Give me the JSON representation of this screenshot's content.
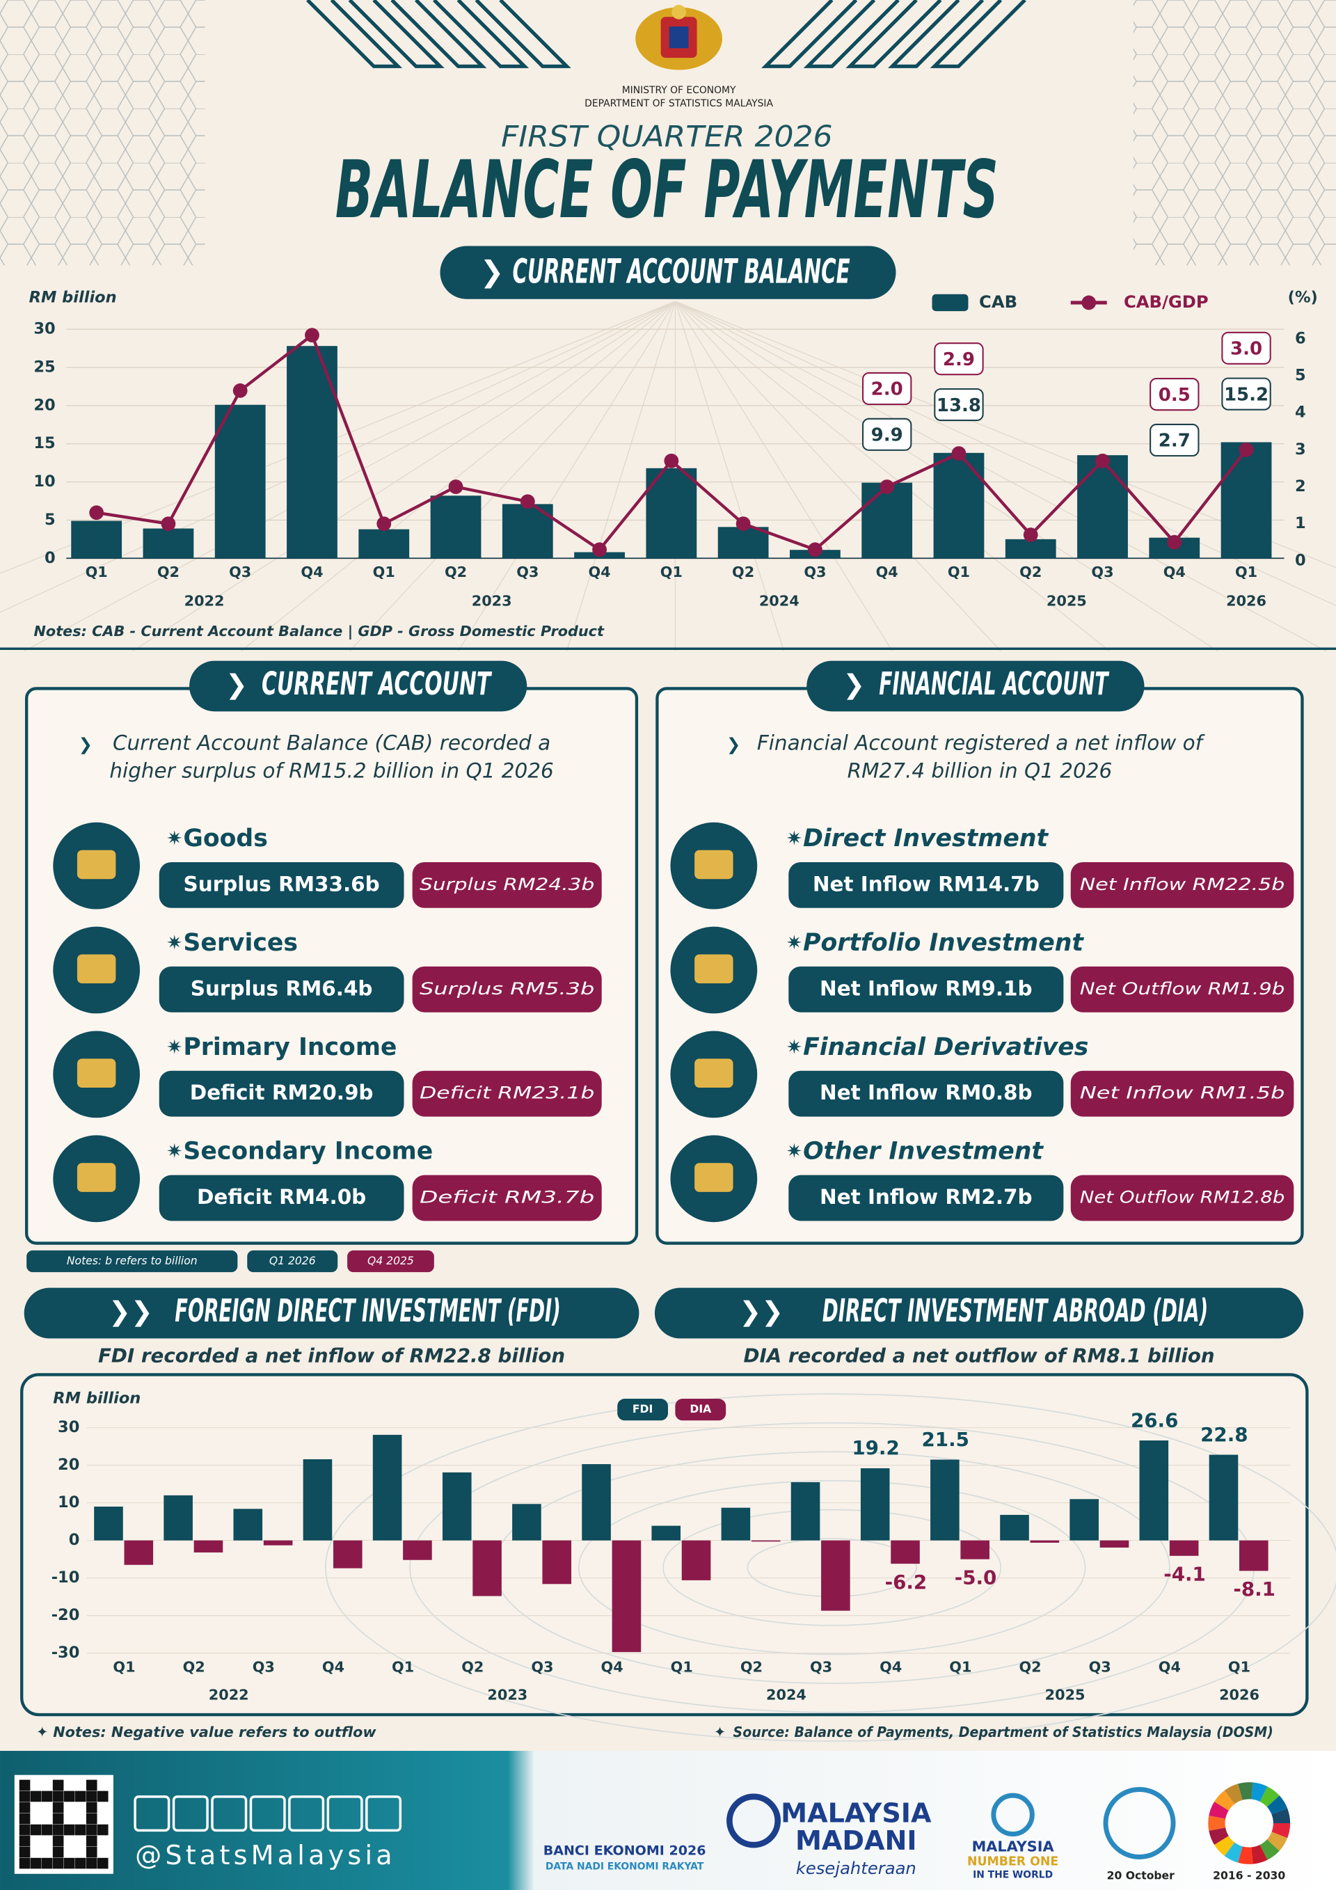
{
  "header": {
    "agency": [
      "MINISTRY OF ECONOMY",
      "DEPARTMENT OF STATISTICS MALAYSIA"
    ],
    "subtitle": "FIRST QUARTER 2026",
    "title": "BALANCE OF PAYMENTS",
    "section": "CURRENT ACCOUNT BALANCE"
  },
  "chart_data": [
    {
      "type": "combo",
      "y_label": "RM billion",
      "y2_label": "(%)",
      "notes": "Notes: CAB - Current Account Balance | GDP - Gross Domestic Product",
      "categories": [
        "Q1",
        "Q2",
        "Q3",
        "Q4",
        "Q1",
        "Q2",
        "Q3",
        "Q4",
        "Q1",
        "Q2",
        "Q3",
        "Q4",
        "Q1",
        "Q2",
        "Q3",
        "Q4",
        "Q1"
      ],
      "groups": [
        "2022",
        "2023",
        "2024",
        "2025",
        "2026"
      ],
      "series": [
        {
          "name": "CAB",
          "type": "bar",
          "color": "#0f4c5c",
          "values": [
            4.9,
            3.9,
            20.1,
            27.8,
            3.8,
            8.2,
            7.1,
            0.8,
            11.8,
            4.1,
            1.1,
            9.9,
            13.8,
            2.5,
            13.5,
            2.7,
            15.2
          ],
          "value_labels": [
            null,
            null,
            null,
            null,
            null,
            null,
            null,
            null,
            null,
            null,
            null,
            "9.9",
            "13.8",
            null,
            null,
            "2.7",
            "15.2"
          ]
        },
        {
          "name": "CAB/GDP",
          "type": "line",
          "axis": "y2",
          "color": "#8b1a4a",
          "values": [
            1.3,
            1.0,
            4.6,
            6.1,
            1.0,
            2.0,
            1.6,
            0.3,
            2.7,
            1.0,
            0.3,
            2.0,
            2.9,
            0.7,
            2.7,
            0.5,
            3.0
          ],
          "value_labels": [
            null,
            null,
            null,
            null,
            null,
            null,
            null,
            null,
            null,
            null,
            null,
            "2.0",
            "2.9",
            null,
            null,
            "0.5",
            "3.0"
          ]
        }
      ],
      "ylim": [
        0,
        30
      ],
      "yticks": [
        0,
        5,
        10,
        15,
        20,
        25,
        30
      ],
      "y2lim": [
        0,
        6
      ],
      "y2ticks": [
        0,
        1,
        2,
        3,
        4,
        5,
        6
      ],
      "grid": true
    },
    {
      "type": "bar",
      "y_label": "RM billion",
      "categories": [
        "Q1",
        "Q2",
        "Q3",
        "Q4",
        "Q1",
        "Q2",
        "Q3",
        "Q4",
        "Q1",
        "Q2",
        "Q3",
        "Q4",
        "Q1",
        "Q2",
        "Q3",
        "Q4",
        "Q1"
      ],
      "groups": [
        "2022",
        "2023",
        "2024",
        "2025",
        "2026"
      ],
      "series": [
        {
          "name": "FDI",
          "color": "#0f4c5c",
          "values": [
            9.0,
            12.0,
            8.4,
            21.6,
            28.1,
            18.1,
            9.7,
            20.3,
            3.9,
            8.7,
            15.5,
            19.2,
            21.5,
            6.8,
            11.0,
            26.6,
            22.8
          ],
          "value_labels": [
            null,
            null,
            null,
            null,
            null,
            null,
            null,
            null,
            null,
            null,
            null,
            "19.2",
            "21.5",
            null,
            null,
            "26.6",
            "22.8"
          ]
        },
        {
          "name": "DIA",
          "color": "#8b1a4a",
          "values": [
            -6.5,
            -3.2,
            -1.3,
            -7.4,
            -5.2,
            -14.8,
            -11.6,
            -29.7,
            -10.6,
            -0.3,
            -18.7,
            -6.2,
            -5.0,
            -0.6,
            -1.9,
            -4.1,
            -8.1
          ],
          "value_labels": [
            null,
            null,
            null,
            null,
            null,
            null,
            null,
            null,
            null,
            null,
            null,
            "-6.2",
            "-5.0",
            null,
            null,
            "-4.1",
            "-8.1"
          ]
        }
      ],
      "ylim": [
        -30,
        30
      ],
      "yticks": [
        -30,
        -20,
        -10,
        0,
        10,
        20,
        30
      ],
      "grid": true
    }
  ],
  "current_account": {
    "title": "CURRENT ACCOUNT",
    "summary": [
      "Current Account Balance (CAB) recorded a",
      "higher surplus of RM15.2 billion in Q1 2026"
    ],
    "items": [
      {
        "name": "Goods",
        "current": "Surplus RM33.6b",
        "previous": "Surplus RM24.3b"
      },
      {
        "name": "Services",
        "current": "Surplus RM6.4b",
        "previous": "Surplus RM5.3b"
      },
      {
        "name": "Primary Income",
        "current": "Deficit RM20.9b",
        "previous": "Deficit RM23.1b"
      },
      {
        "name": "Secondary Income",
        "current": "Deficit RM4.0b",
        "previous": "Deficit RM3.7b"
      }
    ]
  },
  "financial_account": {
    "title": "FINANCIAL ACCOUNT",
    "summary": [
      "Financial Account registered a net inflow of",
      "RM27.4 billion in Q1 2026"
    ],
    "items": [
      {
        "name": "Direct Investment",
        "current": "Net Inflow RM14.7b",
        "previous": "Net Inflow RM22.5b"
      },
      {
        "name": "Portfolio Investment",
        "current": "Net Inflow RM9.1b",
        "previous": "Net Outflow RM1.9b"
      },
      {
        "name": "Financial Derivatives",
        "current": "Net Inflow RM0.8b",
        "previous": "Net Inflow RM1.5b"
      },
      {
        "name": "Other Investment",
        "current": "Net Inflow RM2.7b",
        "previous": "Net Outflow RM12.8b"
      }
    ]
  },
  "legend_notes": {
    "note": "Notes: b refers to billion",
    "current": "Q1 2026",
    "previous": "Q4 2025"
  },
  "fdi": {
    "title": "FOREIGN DIRECT INVESTMENT (FDI)",
    "summary": "FDI recorded a net inflow of RM22.8 billion"
  },
  "dia": {
    "title": "DIRECT INVESTMENT ABROAD (DIA)",
    "summary": "DIA recorded a net outflow of RM8.1 billion"
  },
  "footer": {
    "notes": "Notes: Negative value refers to outflow",
    "source": "Source: Balance of Payments, Department of Statistics Malaysia (DOSM)",
    "handle": "@StatsMalaysia",
    "logos": [
      "BANCI EKONOMI 2026",
      "DATA NADI EKONOMI RAKYAT",
      "MALAYSIA",
      "MADANI",
      "kesejahteraan",
      "MALAYSIA",
      "NUMBER ONE",
      "IN THE WORLD",
      "20 October",
      "2016 - 2030"
    ]
  }
}
